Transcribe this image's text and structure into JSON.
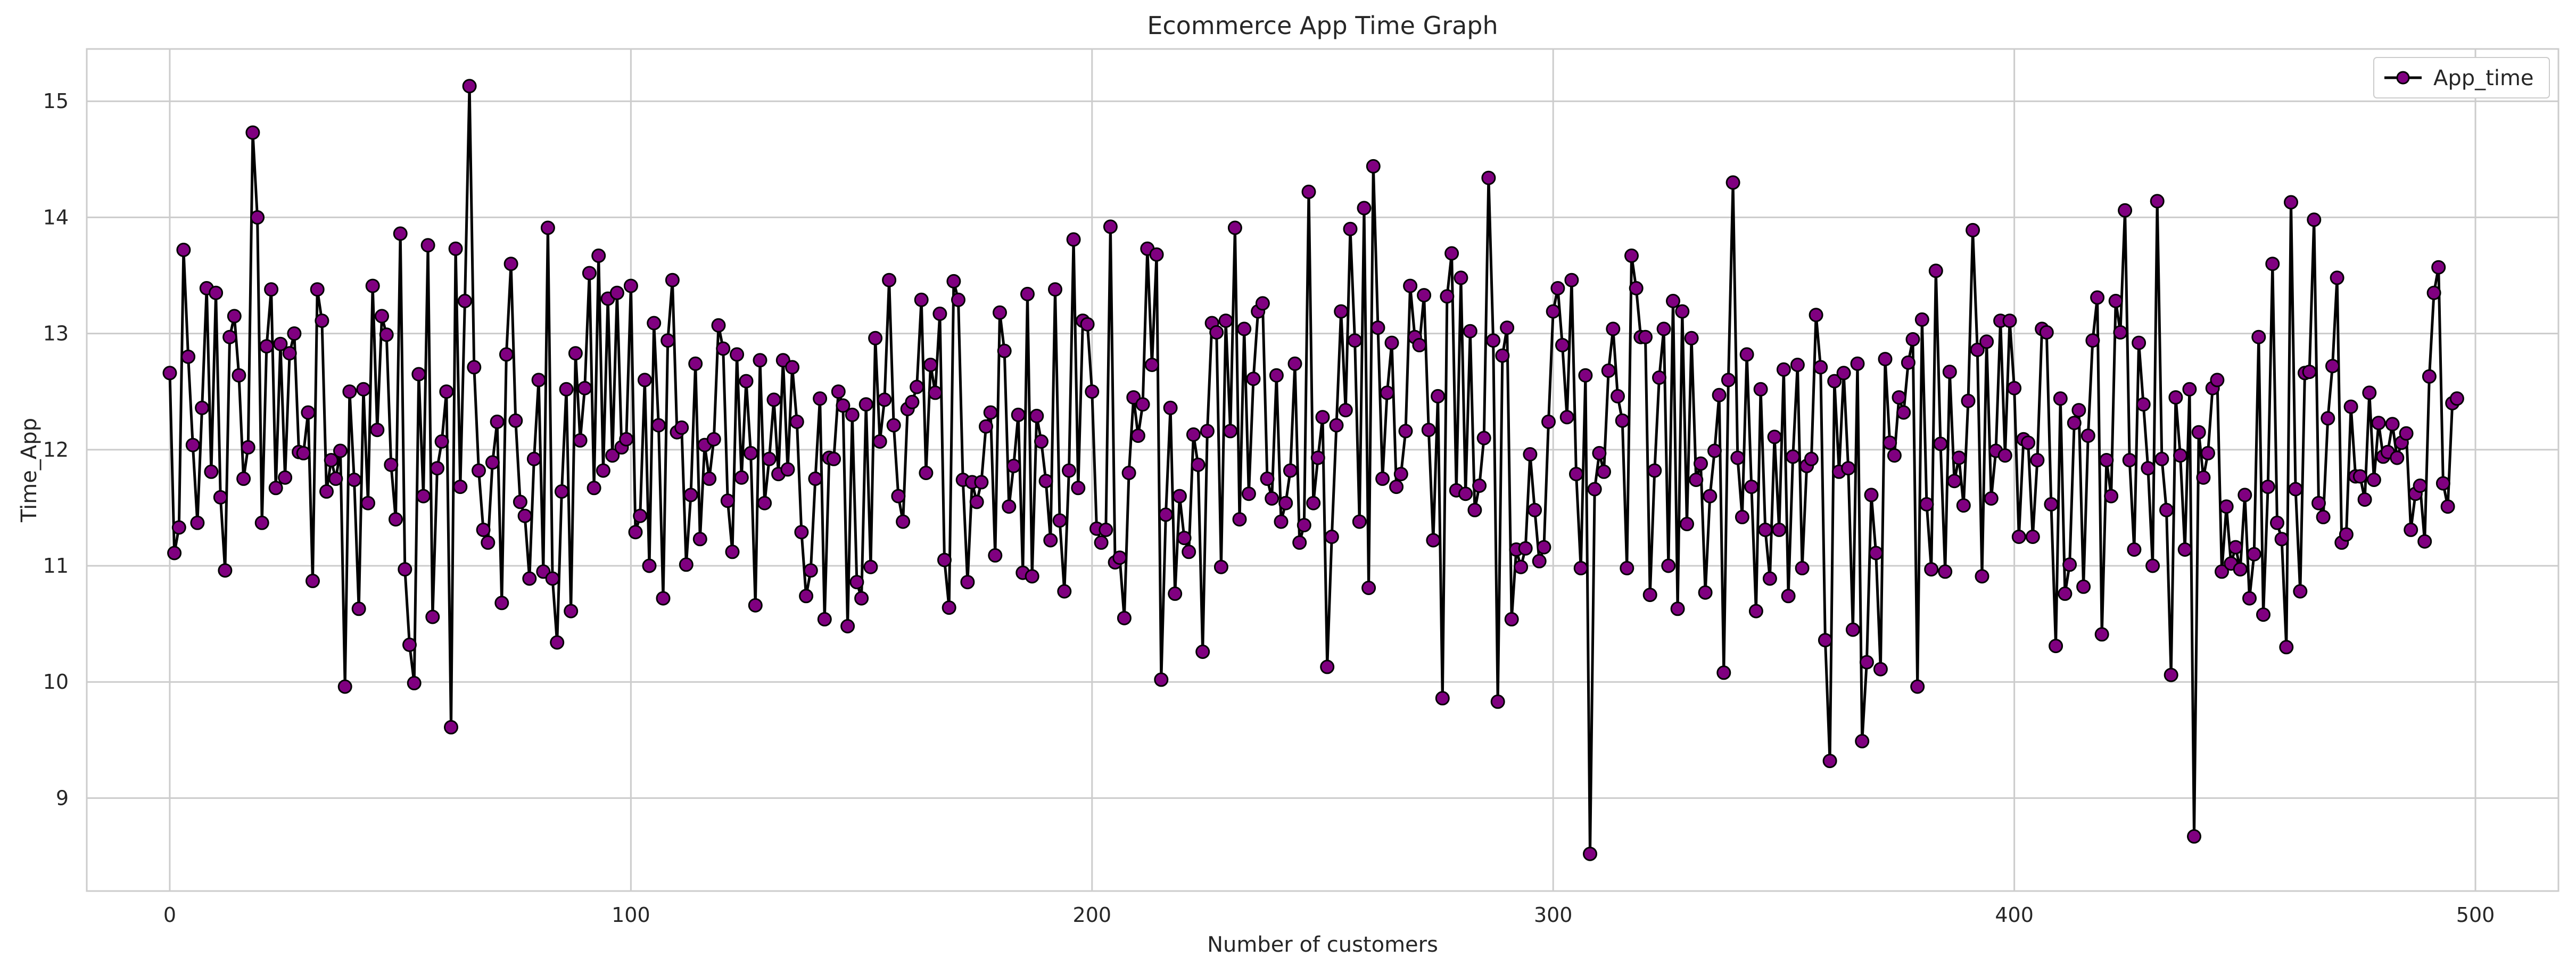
{
  "chart_data": {
    "type": "line",
    "title": "Ecommerce App Time Graph",
    "xlabel": "Number of customers",
    "ylabel": "Time_App",
    "xlim": [
      -18,
      518
    ],
    "ylim": [
      8.2,
      15.45
    ],
    "xticks": [
      0,
      100,
      200,
      300,
      400,
      500
    ],
    "yticks": [
      9,
      10,
      11,
      12,
      13,
      14,
      15
    ],
    "grid": true,
    "legend_position": "top-right",
    "colors": {
      "line": "#000000",
      "marker_fill": "#800080",
      "marker_edge": "#000000",
      "grid": "#cccccc",
      "frame": "#cccccc"
    },
    "series": [
      {
        "name": "App_time",
        "marker": "circle",
        "values": [
          12.66,
          11.11,
          11.33,
          13.72,
          12.8,
          12.04,
          11.37,
          12.36,
          13.39,
          11.81,
          13.35,
          11.59,
          10.96,
          12.97,
          13.15,
          12.64,
          11.75,
          12.02,
          14.73,
          14.0,
          11.37,
          12.89,
          13.38,
          11.67,
          12.91,
          11.76,
          12.83,
          13.0,
          11.98,
          11.97,
          12.32,
          10.87,
          13.38,
          13.11,
          11.64,
          11.91,
          11.75,
          11.99,
          9.96,
          12.5,
          11.74,
          10.63,
          12.52,
          11.54,
          13.41,
          12.17,
          13.15,
          12.99,
          11.87,
          11.4,
          13.86,
          10.97,
          10.32,
          9.99,
          12.65,
          11.6,
          13.76,
          10.56,
          11.84,
          12.07,
          12.5,
          9.61,
          13.73,
          11.68,
          13.28,
          15.13,
          12.71,
          11.82,
          11.31,
          11.2,
          11.89,
          12.24,
          10.68,
          12.82,
          13.6,
          12.25,
          11.55,
          11.43,
          10.89,
          11.92,
          12.6,
          10.95,
          13.91,
          10.89,
          10.34,
          11.64,
          12.52,
          10.61,
          12.83,
          12.08,
          12.53,
          13.52,
          11.67,
          13.67,
          11.82,
          13.3,
          11.95,
          13.35,
          12.02,
          12.09,
          13.41,
          11.29,
          11.43,
          12.6,
          11.0,
          13.09,
          12.21,
          10.72,
          12.94,
          13.46,
          12.15,
          12.19,
          11.01,
          11.61,
          12.74,
          11.23,
          12.04,
          11.75,
          12.09,
          13.07,
          12.87,
          11.56,
          11.12,
          12.82,
          11.76,
          12.59,
          11.97,
          10.66,
          12.77,
          11.54,
          11.92,
          12.43,
          11.79,
          12.77,
          11.83,
          12.71,
          12.24,
          11.29,
          10.74,
          10.96,
          11.75,
          12.44,
          10.54,
          11.93,
          11.92,
          12.5,
          12.38,
          10.48,
          12.3,
          10.86,
          10.72,
          12.39,
          10.99,
          12.96,
          12.07,
          12.43,
          13.46,
          12.21,
          11.6,
          11.38,
          12.35,
          12.41,
          12.54,
          13.29,
          11.8,
          12.73,
          12.49,
          13.17,
          11.05,
          10.64,
          13.45,
          13.29,
          11.74,
          10.86,
          11.72,
          11.55,
          11.72,
          12.2,
          12.32,
          11.09,
          13.18,
          12.85,
          11.51,
          11.86,
          12.3,
          10.94,
          13.34,
          10.91,
          12.29,
          12.07,
          11.73,
          11.22,
          13.38,
          11.39,
          10.78,
          11.82,
          13.81,
          11.67,
          13.11,
          13.08,
          12.5,
          11.32,
          11.2,
          11.31,
          13.92,
          11.03,
          11.07,
          10.55,
          11.8,
          12.45,
          12.12,
          12.39,
          13.73,
          12.73,
          13.68,
          10.02,
          11.44,
          12.36,
          10.76,
          11.6,
          11.24,
          11.12,
          12.13,
          11.87,
          10.26,
          12.16,
          13.09,
          13.01,
          10.99,
          13.11,
          12.16,
          13.91,
          11.4,
          13.04,
          11.62,
          12.61,
          13.19,
          13.26,
          11.75,
          11.58,
          12.64,
          11.38,
          11.54,
          11.82,
          12.74,
          11.2,
          11.35,
          14.22,
          11.54,
          11.93,
          12.28,
          10.13,
          11.25,
          12.21,
          13.19,
          12.34,
          13.9,
          12.94,
          11.38,
          14.08,
          10.81,
          14.44,
          13.05,
          11.75,
          12.49,
          12.92,
          11.68,
          11.79,
          12.16,
          13.41,
          12.97,
          12.9,
          13.33,
          12.17,
          11.22,
          12.46,
          9.86,
          13.32,
          13.69,
          11.65,
          13.48,
          11.62,
          13.02,
          11.48,
          11.69,
          12.1,
          14.34,
          12.94,
          9.83,
          12.81,
          13.05,
          10.54,
          11.14,
          10.99,
          11.15,
          11.96,
          11.48,
          11.04,
          11.16,
          12.24,
          13.19,
          13.39,
          12.9,
          12.28,
          13.46,
          11.79,
          10.98,
          12.64,
          8.52,
          11.66,
          11.97,
          11.81,
          12.68,
          13.04,
          12.46,
          12.25,
          10.98,
          13.67,
          13.39,
          12.97,
          12.97,
          10.75,
          11.82,
          12.62,
          13.04,
          11.0,
          13.28,
          10.63,
          13.19,
          11.36,
          12.96,
          11.74,
          11.88,
          10.77,
          11.6,
          11.99,
          12.47,
          10.08,
          12.6,
          14.3,
          11.93,
          11.42,
          12.82,
          11.68,
          10.61,
          12.52,
          11.31,
          10.89,
          12.11,
          11.31,
          12.69,
          10.74,
          11.94,
          12.73,
          10.98,
          11.86,
          11.92,
          13.16,
          12.71,
          10.36,
          9.32,
          12.59,
          11.81,
          12.66,
          11.84,
          10.45,
          12.74,
          9.49,
          10.17,
          11.61,
          11.11,
          10.11,
          12.78,
          12.06,
          11.95,
          12.45,
          12.32,
          12.75,
          12.95,
          9.96,
          13.12,
          11.53,
          10.97,
          13.54,
          12.05,
          10.95,
          12.67,
          11.73,
          11.93,
          11.52,
          12.42,
          13.89,
          12.86,
          10.91,
          12.93,
          11.58,
          11.99,
          13.11,
          11.95,
          13.11,
          12.53,
          11.25,
          12.09,
          12.06,
          11.25,
          11.91,
          13.04,
          13.01,
          11.53,
          10.31,
          12.44,
          10.76,
          11.01,
          12.23,
          12.34,
          10.82,
          12.12,
          12.94,
          13.31,
          10.41,
          11.91,
          11.6,
          13.28,
          13.01,
          14.06,
          11.91,
          11.14,
          12.92,
          12.39,
          11.84,
          11.0,
          14.14,
          11.92,
          11.48,
          10.06,
          12.45,
          11.95,
          11.14,
          12.52,
          8.67,
          12.15,
          11.76,
          11.97,
          12.53,
          12.6,
          10.95,
          11.51,
          11.02,
          11.16,
          10.97,
          11.61,
          10.72,
          11.1,
          12.97,
          10.58,
          11.68,
          13.6,
          11.37,
          11.23,
          10.3,
          14.13,
          11.66,
          10.78,
          12.66,
          12.67,
          13.98,
          11.54,
          11.42,
          12.27,
          12.72,
          13.48,
          11.2,
          11.27,
          12.37,
          11.77,
          11.77,
          11.57,
          12.49,
          11.74,
          12.23,
          11.94,
          11.98,
          12.22,
          11.93,
          12.06,
          12.14,
          11.31,
          11.62,
          11.69,
          11.21,
          12.63,
          13.35,
          13.57,
          11.71,
          11.51,
          12.4,
          12.44
        ]
      }
    ]
  }
}
